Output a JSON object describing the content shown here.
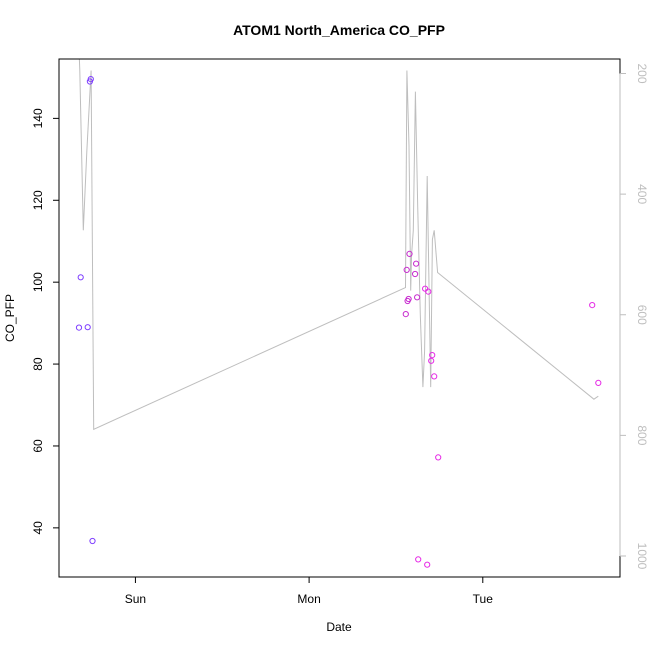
{
  "chart_data": {
    "type": "scatter",
    "title": "ATOM1 North_America CO_PFP",
    "xlabel": "Date",
    "ylabel": "CO_PFP",
    "x_unit": "days since Sun 00:00",
    "xlim": [
      -0.44,
      2.79
    ],
    "ylim": [
      28,
      154.5
    ],
    "x_ticks": [
      {
        "label": "Sun",
        "value": 0
      },
      {
        "label": "Mon",
        "value": 1
      },
      {
        "label": "Tue",
        "value": 2
      }
    ],
    "y_ticks": [
      40,
      60,
      80,
      100,
      120,
      140
    ],
    "right_axis": {
      "ticks": [
        200,
        400,
        600,
        800,
        1000
      ],
      "reversed": true,
      "color": "#bebebe"
    },
    "points": [
      {
        "x": -0.325,
        "y": 88.9,
        "color": "#7f3fff"
      },
      {
        "x": -0.315,
        "y": 101.2,
        "color": "#7f3fff"
      },
      {
        "x": -0.275,
        "y": 89.0,
        "color": "#7f3fff"
      },
      {
        "x": -0.262,
        "y": 149.0,
        "color": "#7f3fff"
      },
      {
        "x": -0.257,
        "y": 149.6,
        "color": "#7f3fff"
      },
      {
        "x": -0.247,
        "y": 36.8,
        "color": "#7f3fff"
      },
      {
        "x": 1.557,
        "y": 92.2,
        "color": "#c82ccf"
      },
      {
        "x": 1.562,
        "y": 103.0,
        "color": "#c82ccf"
      },
      {
        "x": 1.567,
        "y": 95.4,
        "color": "#c82ccf"
      },
      {
        "x": 1.573,
        "y": 95.9,
        "color": "#c82ccf"
      },
      {
        "x": 1.578,
        "y": 106.9,
        "color": "#c82ccf"
      },
      {
        "x": 1.61,
        "y": 102.0,
        "color": "#c82ccf"
      },
      {
        "x": 1.616,
        "y": 104.5,
        "color": "#c82ccf"
      },
      {
        "x": 1.622,
        "y": 96.3,
        "color": "#c82ccf"
      },
      {
        "x": 1.628,
        "y": 32.3,
        "color": "#e62ae6"
      },
      {
        "x": 1.668,
        "y": 98.4,
        "color": "#e62ae6"
      },
      {
        "x": 1.68,
        "y": 31.0,
        "color": "#e62ae6"
      },
      {
        "x": 1.686,
        "y": 97.7,
        "color": "#e62ae6"
      },
      {
        "x": 1.703,
        "y": 80.8,
        "color": "#e62ae6"
      },
      {
        "x": 1.709,
        "y": 82.2,
        "color": "#e62ae6"
      },
      {
        "x": 1.72,
        "y": 77.0,
        "color": "#e62ae6"
      },
      {
        "x": 1.743,
        "y": 57.2,
        "color": "#e62ae6"
      },
      {
        "x": 2.63,
        "y": 94.4,
        "color": "#e62ae6"
      },
      {
        "x": 2.665,
        "y": 75.4,
        "color": "#e62ae6"
      }
    ],
    "line": {
      "color": "#bebebe",
      "x": [
        -0.33,
        -0.32,
        -0.3,
        -0.28,
        -0.255,
        -0.24,
        1.555,
        1.563,
        1.575,
        1.585,
        1.59,
        1.6,
        1.612,
        1.625,
        1.64,
        1.655,
        1.665,
        1.68,
        1.7,
        1.71,
        1.72,
        1.74,
        2.64,
        2.665
      ],
      "y": [
        120,
        195,
        460,
        330,
        195,
        790,
        555,
        195,
        320,
        560,
        500,
        460,
        230,
        420,
        600,
        720,
        660,
        370,
        720,
        475,
        460,
        530,
        740,
        735
      ]
    }
  }
}
